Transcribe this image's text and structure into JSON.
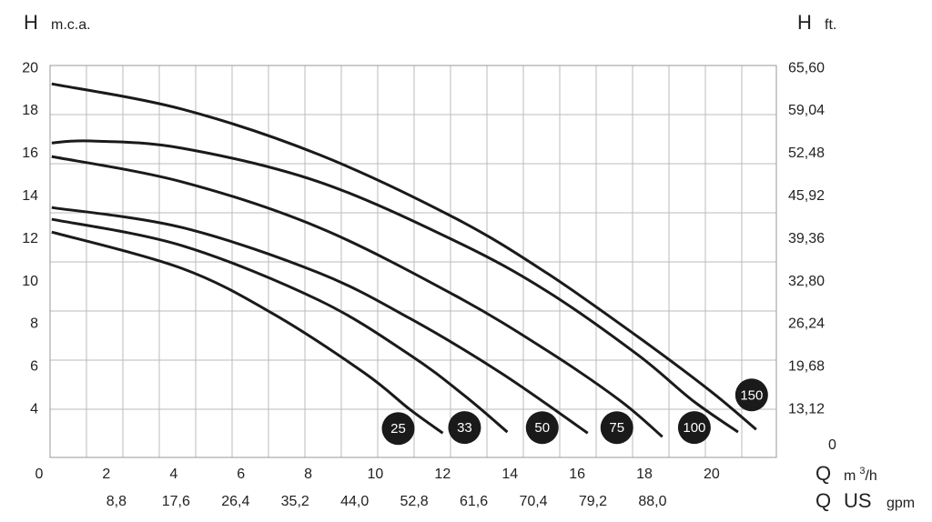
{
  "chart_data": {
    "type": "line",
    "y_symbol": "H",
    "y_unit": "m.c.a.",
    "y2_symbol": "H",
    "y2_unit": "ft.",
    "x_symbol": "Q",
    "x_unit_base": "m",
    "x_unit_sup": "3",
    "x_unit_rest": "/h",
    "x2_symbol": "Q",
    "x2_mid": "US",
    "x2_unit": "gpm",
    "y2_origin_label": "0",
    "xlim": [
      0,
      21.6
    ],
    "xticks": [
      0,
      2,
      4,
      6,
      8,
      10,
      12,
      14,
      16,
      18,
      20
    ],
    "x2lim": [
      -1.0,
      106.3
    ],
    "x2ticks": [
      {
        "value": 8.8,
        "label": "8,8"
      },
      {
        "value": 17.6,
        "label": "17,6"
      },
      {
        "value": 26.4,
        "label": "26,4"
      },
      {
        "value": 35.2,
        "label": "35,2"
      },
      {
        "value": 44.0,
        "label": "44,0"
      },
      {
        "value": 52.8,
        "label": "52,8"
      },
      {
        "value": 61.6,
        "label": "61,6"
      },
      {
        "value": 70.4,
        "label": "70,4"
      },
      {
        "value": 79.2,
        "label": "79,2"
      },
      {
        "value": 88.0,
        "label": "88,0"
      }
    ],
    "ylim": [
      1.75,
      20.13
    ],
    "yticks": [
      4,
      6,
      8,
      10,
      12,
      14,
      16,
      18,
      20
    ],
    "y2lim": [
      5.74,
      66.03
    ],
    "y2ticks": [
      {
        "value": 13.12,
        "label": "13,12"
      },
      {
        "value": 19.68,
        "label": "19,68"
      },
      {
        "value": 26.24,
        "label": "26,24"
      },
      {
        "value": 32.8,
        "label": "32,80"
      },
      {
        "value": 39.36,
        "label": "39,36"
      },
      {
        "value": 45.92,
        "label": "45,92"
      },
      {
        "value": 52.48,
        "label": "52,48"
      },
      {
        "value": 59.04,
        "label": "59,04"
      },
      {
        "value": 65.6,
        "label": "65,60"
      }
    ],
    "color": "#1a1a1a",
    "series": [
      {
        "name": "150",
        "x": [
          0.05,
          3.93,
          8.0,
          12.06,
          14.77,
          17.48,
          19.65,
          21.0
        ],
        "values": [
          19.27,
          18.08,
          15.95,
          12.96,
          10.4,
          7.41,
          4.85,
          3.06
        ]
      },
      {
        "name": "100",
        "x": [
          0.05,
          1.22,
          3.93,
          8.0,
          12.06,
          14.77,
          17.48,
          19.1,
          20.46
        ],
        "values": [
          16.5,
          16.59,
          16.25,
          14.67,
          11.89,
          9.55,
          6.56,
          4.43,
          2.94
        ]
      },
      {
        "name": "75",
        "x": [
          0.05,
          3.93,
          8.0,
          12.06,
          14.77,
          16.94,
          18.21
        ],
        "values": [
          15.86,
          14.67,
          12.53,
          9.33,
          6.77,
          4.43,
          2.72
        ]
      },
      {
        "name": "50",
        "x": [
          0.05,
          3.93,
          8.0,
          10.7,
          13.41,
          15.99
        ],
        "values": [
          13.47,
          12.53,
          10.4,
          8.27,
          5.71,
          2.89
        ]
      },
      {
        "name": "33",
        "x": [
          0.05,
          3.93,
          8.0,
          10.7,
          12.33,
          13.6
        ],
        "values": [
          12.92,
          11.68,
          9.12,
          6.56,
          4.64,
          2.94
        ]
      },
      {
        "name": "25",
        "x": [
          0.05,
          3.93,
          6.64,
          9.35,
          10.7,
          11.68
        ],
        "values": [
          12.32,
          10.61,
          8.48,
          5.71,
          4.0,
          2.89
        ]
      }
    ]
  }
}
